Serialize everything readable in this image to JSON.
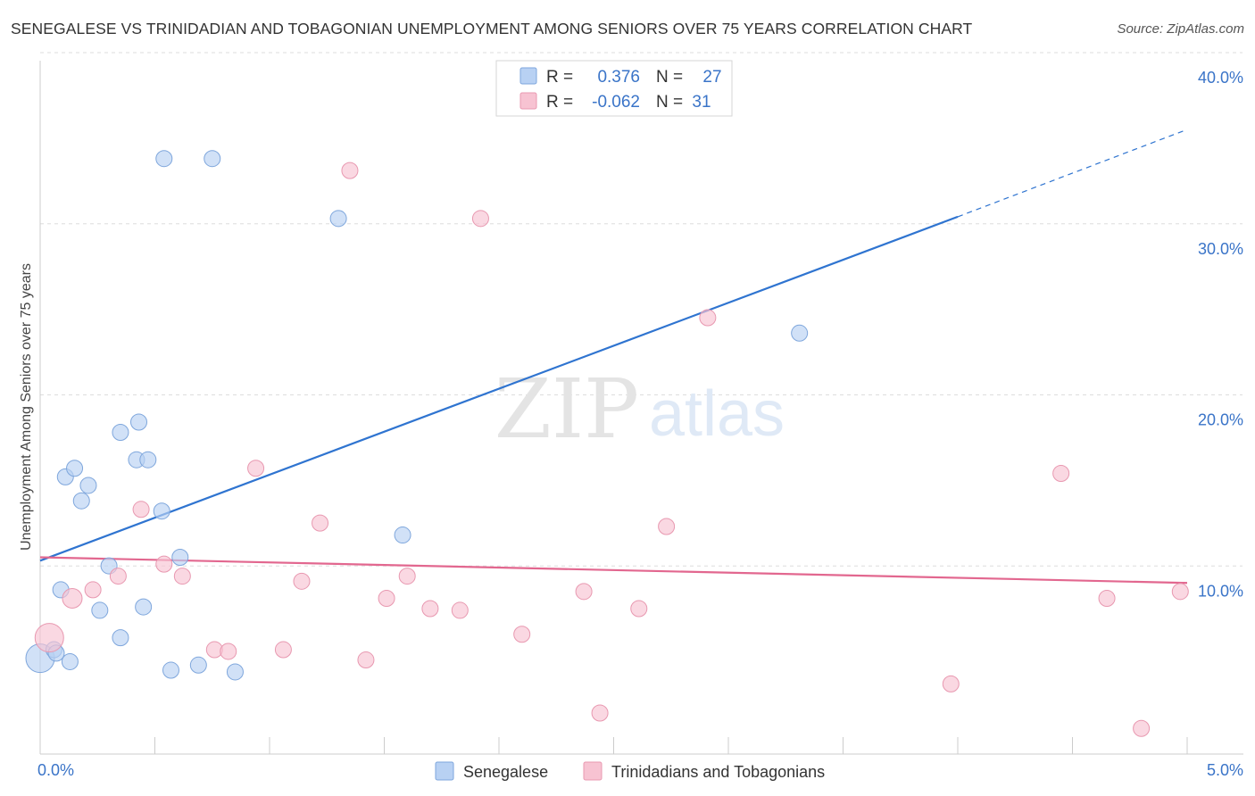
{
  "title": "SENEGALESE VS TRINIDADIAN AND TOBAGONIAN UNEMPLOYMENT AMONG SENIORS OVER 75 YEARS CORRELATION CHART",
  "source": "Source: ZipAtlas.com",
  "watermark": {
    "zip": "ZIP",
    "atlas": "atlas"
  },
  "colors": {
    "blue_fill": "#b8d1f3",
    "blue_stroke": "#7ea6dc",
    "blue_line": "#2f74d0",
    "pink_fill": "#f7c3d2",
    "pink_stroke": "#e898b0",
    "pink_line": "#e2678f",
    "value_text": "#3a74c8",
    "grid": "#dddddd"
  },
  "stats_legend": [
    {
      "r_label": "R =",
      "r_value": "0.376",
      "n_label": "N =",
      "n_value": "27",
      "color": "blue"
    },
    {
      "r_label": "R =",
      "r_value": "-0.062",
      "n_label": "N =",
      "n_value": "31",
      "color": "pink"
    }
  ],
  "chart_data": {
    "type": "scatter",
    "title": "SENEGALESE VS TRINIDADIAN AND TOBAGONIAN UNEMPLOYMENT AMONG SENIORS OVER 75 YEARS CORRELATION CHART",
    "xlabel": "",
    "ylabel": "Unemployment Among Seniors over 75 years",
    "xlim": [
      0,
      5
    ],
    "ylim": [
      0,
      40
    ],
    "x_tick_labels": [
      {
        "value": 0,
        "label": "0.0%"
      },
      {
        "value": 5,
        "label": "5.0%"
      }
    ],
    "y_tick_labels": [
      {
        "value": 10,
        "label": "10.0%"
      },
      {
        "value": 20,
        "label": "20.0%"
      },
      {
        "value": 30,
        "label": "30.0%"
      },
      {
        "value": 40,
        "label": "40.0%"
      }
    ],
    "legend_position": "bottom",
    "grid": true,
    "series": [
      {
        "name": "Senegalese",
        "color": "blue",
        "trend": {
          "x_start": 0,
          "y_start": 11.3,
          "x_end": 4,
          "y_end": 31.4,
          "dashed_to_x": 5,
          "dashed_to_y": 36.5
        },
        "points": [
          [
            0.0,
            5.6,
            16
          ],
          [
            0.06,
            6.1,
            9
          ],
          [
            0.07,
            5.9,
            9
          ],
          [
            0.09,
            9.6,
            9
          ],
          [
            0.13,
            5.4,
            9
          ],
          [
            0.11,
            16.2,
            9
          ],
          [
            0.15,
            16.7,
            9
          ],
          [
            0.18,
            14.8,
            9
          ],
          [
            0.21,
            15.7,
            9
          ],
          [
            0.26,
            8.4,
            9
          ],
          [
            0.3,
            11.0,
            9
          ],
          [
            0.35,
            6.8,
            9
          ],
          [
            0.35,
            18.8,
            9
          ],
          [
            0.42,
            17.2,
            9
          ],
          [
            0.43,
            19.4,
            9
          ],
          [
            0.45,
            8.6,
            9
          ],
          [
            0.47,
            17.2,
            9
          ],
          [
            0.53,
            14.2,
            9
          ],
          [
            0.54,
            34.8,
            9
          ],
          [
            0.57,
            4.9,
            9
          ],
          [
            0.61,
            11.5,
            9
          ],
          [
            0.69,
            5.2,
            9
          ],
          [
            0.75,
            34.8,
            9
          ],
          [
            0.85,
            4.8,
            9
          ],
          [
            1.3,
            31.3,
            9
          ],
          [
            1.58,
            12.8,
            9
          ],
          [
            3.31,
            24.6,
            9
          ]
        ]
      },
      {
        "name": "Trinidadians and Tobagonians",
        "color": "pink",
        "trend": {
          "x_start": 0,
          "y_start": 11.5,
          "x_end": 5,
          "y_end": 10.0
        },
        "points": [
          [
            0.04,
            6.8,
            16
          ],
          [
            0.14,
            9.1,
            11
          ],
          [
            0.23,
            9.6,
            9
          ],
          [
            0.34,
            10.4,
            9
          ],
          [
            0.44,
            14.3,
            9
          ],
          [
            0.54,
            11.1,
            9
          ],
          [
            0.62,
            10.4,
            9
          ],
          [
            0.76,
            6.1,
            9
          ],
          [
            0.82,
            6.0,
            9
          ],
          [
            0.94,
            16.7,
            9
          ],
          [
            1.06,
            6.1,
            9
          ],
          [
            1.14,
            10.1,
            9
          ],
          [
            1.22,
            13.5,
            9
          ],
          [
            1.35,
            34.1,
            9
          ],
          [
            1.42,
            5.5,
            9
          ],
          [
            1.51,
            9.1,
            9
          ],
          [
            1.6,
            10.4,
            9
          ],
          [
            1.7,
            8.5,
            9
          ],
          [
            1.83,
            8.4,
            9
          ],
          [
            1.92,
            31.3,
            9
          ],
          [
            2.1,
            7.0,
            9
          ],
          [
            2.37,
            9.5,
            9
          ],
          [
            2.44,
            2.4,
            9
          ],
          [
            2.61,
            8.5,
            9
          ],
          [
            2.73,
            13.3,
            9
          ],
          [
            2.91,
            25.5,
            9
          ],
          [
            3.97,
            4.1,
            9
          ],
          [
            4.45,
            16.4,
            9
          ],
          [
            4.65,
            9.1,
            9
          ],
          [
            4.8,
            1.5,
            9
          ],
          [
            4.97,
            9.5,
            9
          ]
        ]
      }
    ]
  }
}
